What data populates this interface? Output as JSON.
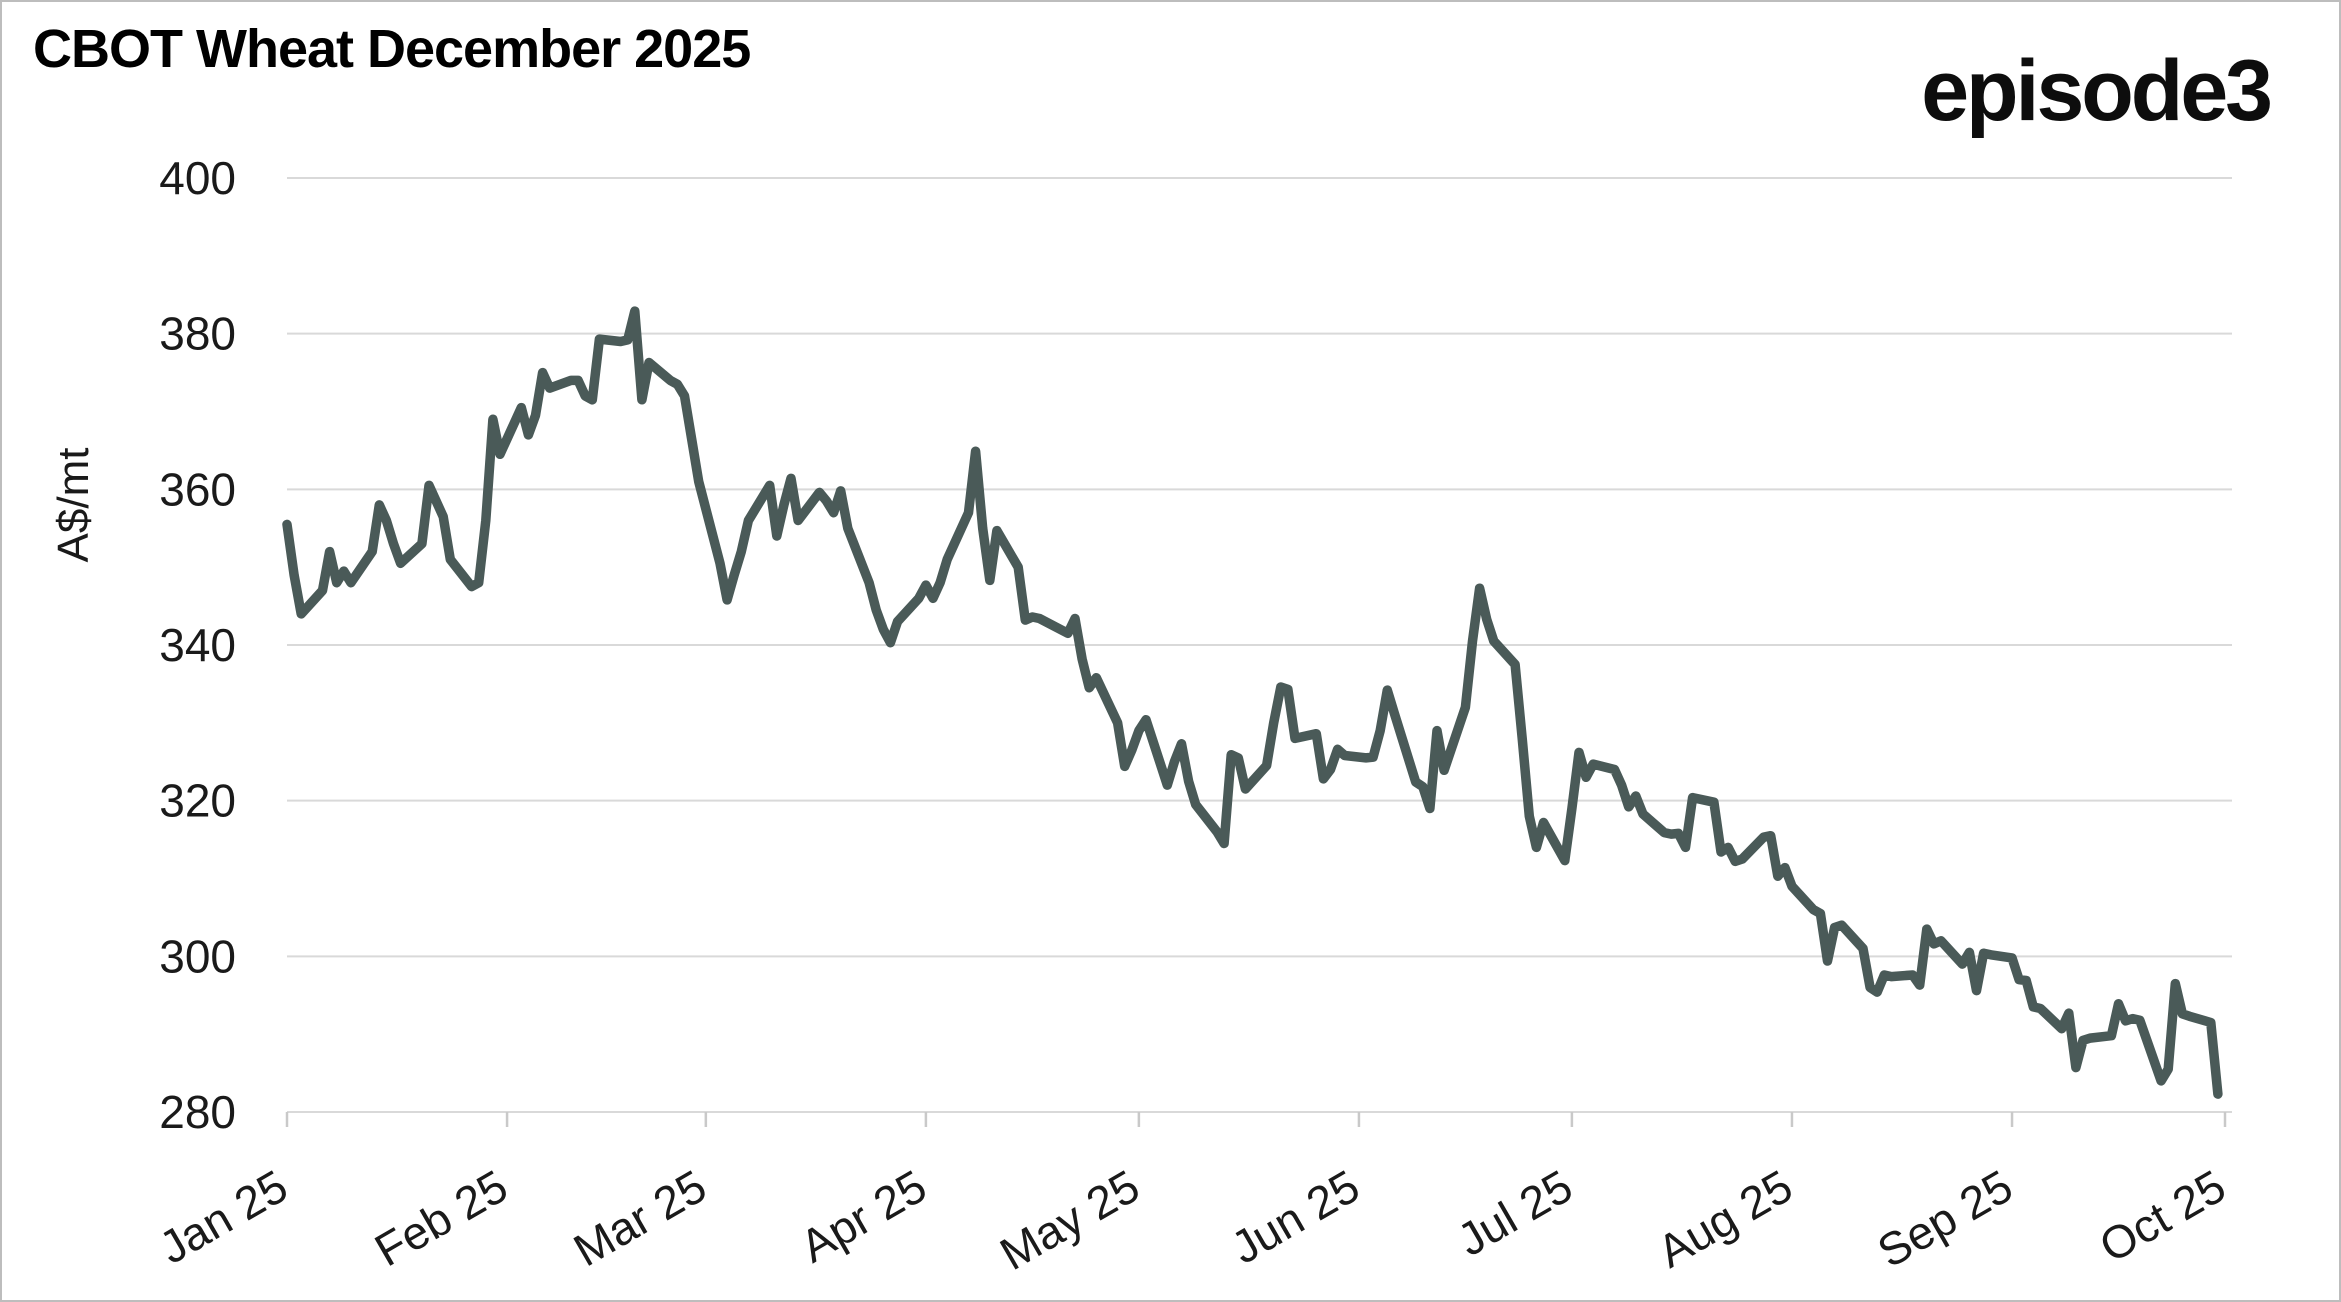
{
  "header": {
    "title": "CBOT Wheat December 2025",
    "logo": "episode3"
  },
  "colors": {
    "line": "#4a5a58",
    "grid": "#d9d9d9",
    "tick_mark": "#c9c9c9",
    "axis_text": "#1a1a1a",
    "title_text": "#000000"
  },
  "chart_data": {
    "type": "line",
    "title": "CBOT Wheat December 2025",
    "xlabel": "",
    "ylabel": "A$/mt",
    "ylim": [
      280,
      400
    ],
    "yticks": [
      400,
      380,
      360,
      340,
      320,
      300,
      280
    ],
    "xticks": [
      {
        "label": "Jan 25",
        "date": "2025-01-01"
      },
      {
        "label": "Feb 25",
        "date": "2025-02-01"
      },
      {
        "label": "Mar 25",
        "date": "2025-03-01"
      },
      {
        "label": "Apr 25",
        "date": "2025-04-01"
      },
      {
        "label": "May 25",
        "date": "2025-05-01"
      },
      {
        "label": "Jun 25",
        "date": "2025-06-01"
      },
      {
        "label": "Jul 25",
        "date": "2025-07-01"
      },
      {
        "label": "Aug 25",
        "date": "2025-08-01"
      },
      {
        "label": "Sep 25",
        "date": "2025-09-01"
      },
      {
        "label": "Oct 25",
        "date": "2025-10-01"
      }
    ],
    "grid": "horizontal",
    "legend": "none",
    "series": [
      {
        "name": "CBOT Wheat December 2025 (A$/mt)",
        "points": [
          [
            "2025-01-01",
            355.5
          ],
          [
            "2025-01-02",
            349
          ],
          [
            "2025-01-03",
            344
          ],
          [
            "2025-01-06",
            347
          ],
          [
            "2025-01-07",
            352
          ],
          [
            "2025-01-08",
            348
          ],
          [
            "2025-01-09",
            349.5
          ],
          [
            "2025-01-10",
            348
          ],
          [
            "2025-01-13",
            352
          ],
          [
            "2025-01-14",
            358
          ],
          [
            "2025-01-15",
            356
          ],
          [
            "2025-01-16",
            353
          ],
          [
            "2025-01-17",
            350.5
          ],
          [
            "2025-01-20",
            353
          ],
          [
            "2025-01-21",
            360.5
          ],
          [
            "2025-01-22",
            358.5
          ],
          [
            "2025-01-23",
            356.5
          ],
          [
            "2025-01-24",
            351
          ],
          [
            "2025-01-27",
            347.5
          ],
          [
            "2025-01-28",
            348
          ],
          [
            "2025-01-29",
            356
          ],
          [
            "2025-01-30",
            369
          ],
          [
            "2025-01-31",
            364.5
          ],
          [
            "2025-02-03",
            370.5
          ],
          [
            "2025-02-04",
            367
          ],
          [
            "2025-02-05",
            369.5
          ],
          [
            "2025-02-06",
            375
          ],
          [
            "2025-02-07",
            373
          ],
          [
            "2025-02-10",
            374
          ],
          [
            "2025-02-11",
            374
          ],
          [
            "2025-02-12",
            372
          ],
          [
            "2025-02-13",
            371.5
          ],
          [
            "2025-02-14",
            379.3
          ],
          [
            "2025-02-17",
            379
          ],
          [
            "2025-02-18",
            379.2
          ],
          [
            "2025-02-19",
            382.9
          ],
          [
            "2025-02-20",
            371.5
          ],
          [
            "2025-02-21",
            376.3
          ],
          [
            "2025-02-24",
            374
          ],
          [
            "2025-02-25",
            373.5
          ],
          [
            "2025-02-26",
            372
          ],
          [
            "2025-02-27",
            366.5
          ],
          [
            "2025-02-28",
            361
          ],
          [
            "2025-03-03",
            350.5
          ],
          [
            "2025-03-04",
            345.8
          ],
          [
            "2025-03-05",
            349
          ],
          [
            "2025-03-06",
            352
          ],
          [
            "2025-03-07",
            356
          ],
          [
            "2025-03-10",
            360.5
          ],
          [
            "2025-03-11",
            354
          ],
          [
            "2025-03-12",
            358
          ],
          [
            "2025-03-13",
            361.4
          ],
          [
            "2025-03-14",
            356
          ],
          [
            "2025-03-17",
            359.6
          ],
          [
            "2025-03-18",
            358.5
          ],
          [
            "2025-03-19",
            357
          ],
          [
            "2025-03-20",
            359.8
          ],
          [
            "2025-03-21",
            355
          ],
          [
            "2025-03-24",
            348
          ],
          [
            "2025-03-25",
            344.5
          ],
          [
            "2025-03-26",
            342
          ],
          [
            "2025-03-27",
            340.3
          ],
          [
            "2025-03-28",
            343
          ],
          [
            "2025-03-31",
            346
          ],
          [
            "2025-04-01",
            347.7
          ],
          [
            "2025-04-02",
            346
          ],
          [
            "2025-04-03",
            348
          ],
          [
            "2025-04-04",
            351
          ],
          [
            "2025-04-07",
            357
          ],
          [
            "2025-04-08",
            364.9
          ],
          [
            "2025-04-09",
            355
          ],
          [
            "2025-04-10",
            348.3
          ],
          [
            "2025-04-11",
            354.7
          ],
          [
            "2025-04-14",
            350
          ],
          [
            "2025-04-15",
            343.2
          ],
          [
            "2025-04-16",
            343.6
          ],
          [
            "2025-04-17",
            343.4
          ],
          [
            "2025-04-21",
            341.5
          ],
          [
            "2025-04-22",
            343.4
          ],
          [
            "2025-04-23",
            338.2
          ],
          [
            "2025-04-24",
            334.5
          ],
          [
            "2025-04-25",
            335.8
          ],
          [
            "2025-04-28",
            330
          ],
          [
            "2025-04-29",
            324.4
          ],
          [
            "2025-04-30",
            326.5
          ],
          [
            "2025-05-01",
            329
          ],
          [
            "2025-05-02",
            330.4
          ],
          [
            "2025-05-05",
            322
          ],
          [
            "2025-05-06",
            325
          ],
          [
            "2025-05-07",
            327.3
          ],
          [
            "2025-05-08",
            322.5
          ],
          [
            "2025-05-09",
            319.5
          ],
          [
            "2025-05-12",
            316
          ],
          [
            "2025-05-13",
            314.5
          ],
          [
            "2025-05-14",
            325.9
          ],
          [
            "2025-05-15",
            325.5
          ],
          [
            "2025-05-16",
            321.5
          ],
          [
            "2025-05-19",
            324.5
          ],
          [
            "2025-05-20",
            330
          ],
          [
            "2025-05-21",
            334.6
          ],
          [
            "2025-05-22",
            334.3
          ],
          [
            "2025-05-23",
            328
          ],
          [
            "2025-05-26",
            328.6
          ],
          [
            "2025-05-27",
            322.8
          ],
          [
            "2025-05-28",
            324
          ],
          [
            "2025-05-29",
            326.6
          ],
          [
            "2025-05-30",
            325.8
          ],
          [
            "2025-06-02",
            325.5
          ],
          [
            "2025-06-03",
            325.6
          ],
          [
            "2025-06-04",
            329
          ],
          [
            "2025-06-05",
            334.2
          ],
          [
            "2025-06-06",
            331.2
          ],
          [
            "2025-06-09",
            322.4
          ],
          [
            "2025-06-10",
            321.8
          ],
          [
            "2025-06-11",
            319
          ],
          [
            "2025-06-12",
            329
          ],
          [
            "2025-06-13",
            323.9
          ],
          [
            "2025-06-16",
            332
          ],
          [
            "2025-06-17",
            340.5
          ],
          [
            "2025-06-18",
            347.3
          ],
          [
            "2025-06-19",
            343.3
          ],
          [
            "2025-06-20",
            340.5
          ],
          [
            "2025-06-23",
            337.5
          ],
          [
            "2025-06-24",
            328
          ],
          [
            "2025-06-25",
            318
          ],
          [
            "2025-06-26",
            314
          ],
          [
            "2025-06-27",
            317.2
          ],
          [
            "2025-06-30",
            312.3
          ],
          [
            "2025-07-01",
            319
          ],
          [
            "2025-07-02",
            326.2
          ],
          [
            "2025-07-03",
            323
          ],
          [
            "2025-07-04",
            324.7
          ],
          [
            "2025-07-07",
            324
          ],
          [
            "2025-07-08",
            322
          ],
          [
            "2025-07-09",
            319.2
          ],
          [
            "2025-07-10",
            320.6
          ],
          [
            "2025-07-11",
            318.3
          ],
          [
            "2025-07-14",
            315.9
          ],
          [
            "2025-07-15",
            315.7
          ],
          [
            "2025-07-16",
            315.8
          ],
          [
            "2025-07-17",
            314
          ],
          [
            "2025-07-18",
            320.4
          ],
          [
            "2025-07-21",
            319.8
          ],
          [
            "2025-07-22",
            313.4
          ],
          [
            "2025-07-23",
            314
          ],
          [
            "2025-07-24",
            312.2
          ],
          [
            "2025-07-25",
            312.5
          ],
          [
            "2025-07-28",
            315.3
          ],
          [
            "2025-07-29",
            315.5
          ],
          [
            "2025-07-30",
            310.3
          ],
          [
            "2025-07-31",
            311.4
          ],
          [
            "2025-08-01",
            309
          ],
          [
            "2025-08-04",
            306
          ],
          [
            "2025-08-05",
            305.5
          ],
          [
            "2025-08-06",
            299.4
          ],
          [
            "2025-08-07",
            303.7
          ],
          [
            "2025-08-08",
            304
          ],
          [
            "2025-08-11",
            301
          ],
          [
            "2025-08-12",
            296
          ],
          [
            "2025-08-13",
            295.4
          ],
          [
            "2025-08-14",
            297.6
          ],
          [
            "2025-08-15",
            297.4
          ],
          [
            "2025-08-18",
            297.6
          ],
          [
            "2025-08-19",
            296.3
          ],
          [
            "2025-08-20",
            303.5
          ],
          [
            "2025-08-21",
            301.6
          ],
          [
            "2025-08-22",
            302
          ],
          [
            "2025-08-25",
            299
          ],
          [
            "2025-08-26",
            300.5
          ],
          [
            "2025-08-27",
            295.6
          ],
          [
            "2025-08-28",
            300.4
          ],
          [
            "2025-08-29",
            300.2
          ],
          [
            "2025-09-01",
            299.8
          ],
          [
            "2025-09-02",
            297
          ],
          [
            "2025-09-03",
            296.9
          ],
          [
            "2025-09-04",
            293.5
          ],
          [
            "2025-09-05",
            293.3
          ],
          [
            "2025-09-08",
            290.7
          ],
          [
            "2025-09-09",
            292.7
          ],
          [
            "2025-09-10",
            285.7
          ],
          [
            "2025-09-11",
            289.2
          ],
          [
            "2025-09-12",
            289.5
          ],
          [
            "2025-09-15",
            289.8
          ],
          [
            "2025-09-16",
            293.9
          ],
          [
            "2025-09-17",
            291.7
          ],
          [
            "2025-09-18",
            292
          ],
          [
            "2025-09-19",
            291.8
          ],
          [
            "2025-09-22",
            284
          ],
          [
            "2025-09-23",
            285.5
          ],
          [
            "2025-09-24",
            296.5
          ],
          [
            "2025-09-25",
            292.6
          ],
          [
            "2025-09-26",
            292.3
          ],
          [
            "2025-09-29",
            291.5
          ],
          [
            "2025-09-30",
            282.3
          ]
        ]
      }
    ]
  }
}
